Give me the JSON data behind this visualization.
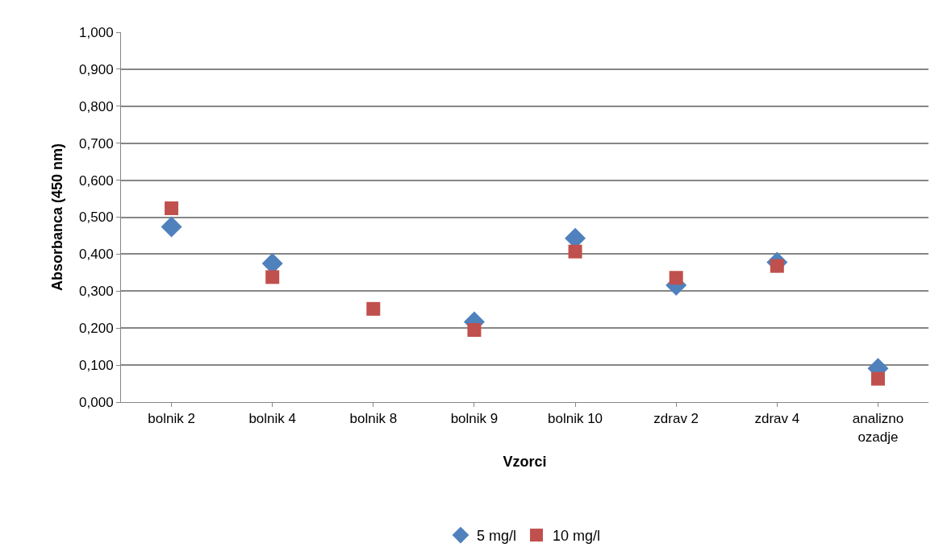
{
  "chart_data": {
    "type": "scatter",
    "xlabel": "Vzorci",
    "ylabel": "Absorbanca (450 nm)",
    "categories": [
      "bolnik 2",
      "bolnik 4",
      "bolnik 8",
      "bolnik 9",
      "bolnik 10",
      "zdrav 2",
      "zdrav 4",
      "analizno ozadje"
    ],
    "series": [
      {
        "name": "5 mg/l",
        "color": "#4f81bd",
        "marker": "diamond",
        "values": [
          0.474,
          0.375,
          null,
          0.217,
          0.443,
          0.316,
          0.378,
          0.091
        ]
      },
      {
        "name": "10 mg/l",
        "color": "#c0504d",
        "marker": "square",
        "values": [
          0.524,
          0.338,
          0.252,
          0.195,
          0.407,
          0.336,
          0.368,
          0.063
        ]
      }
    ],
    "ylim": [
      0,
      1
    ],
    "yticks": [
      {
        "value": 0,
        "label": "0,000"
      },
      {
        "value": 0.1,
        "label": "0,100"
      },
      {
        "value": 0.2,
        "label": "0,200"
      },
      {
        "value": 0.3,
        "label": "0,300"
      },
      {
        "value": 0.4,
        "label": "0,400"
      },
      {
        "value": 0.5,
        "label": "0,500"
      },
      {
        "value": 0.6,
        "label": "0,600"
      },
      {
        "value": 0.7,
        "label": "0,700"
      },
      {
        "value": 0.8,
        "label": "0,800"
      },
      {
        "value": 0.9,
        "label": "0,900"
      },
      {
        "value": 1,
        "label": "1,000"
      }
    ],
    "grid": "y",
    "legend": "bottom"
  }
}
